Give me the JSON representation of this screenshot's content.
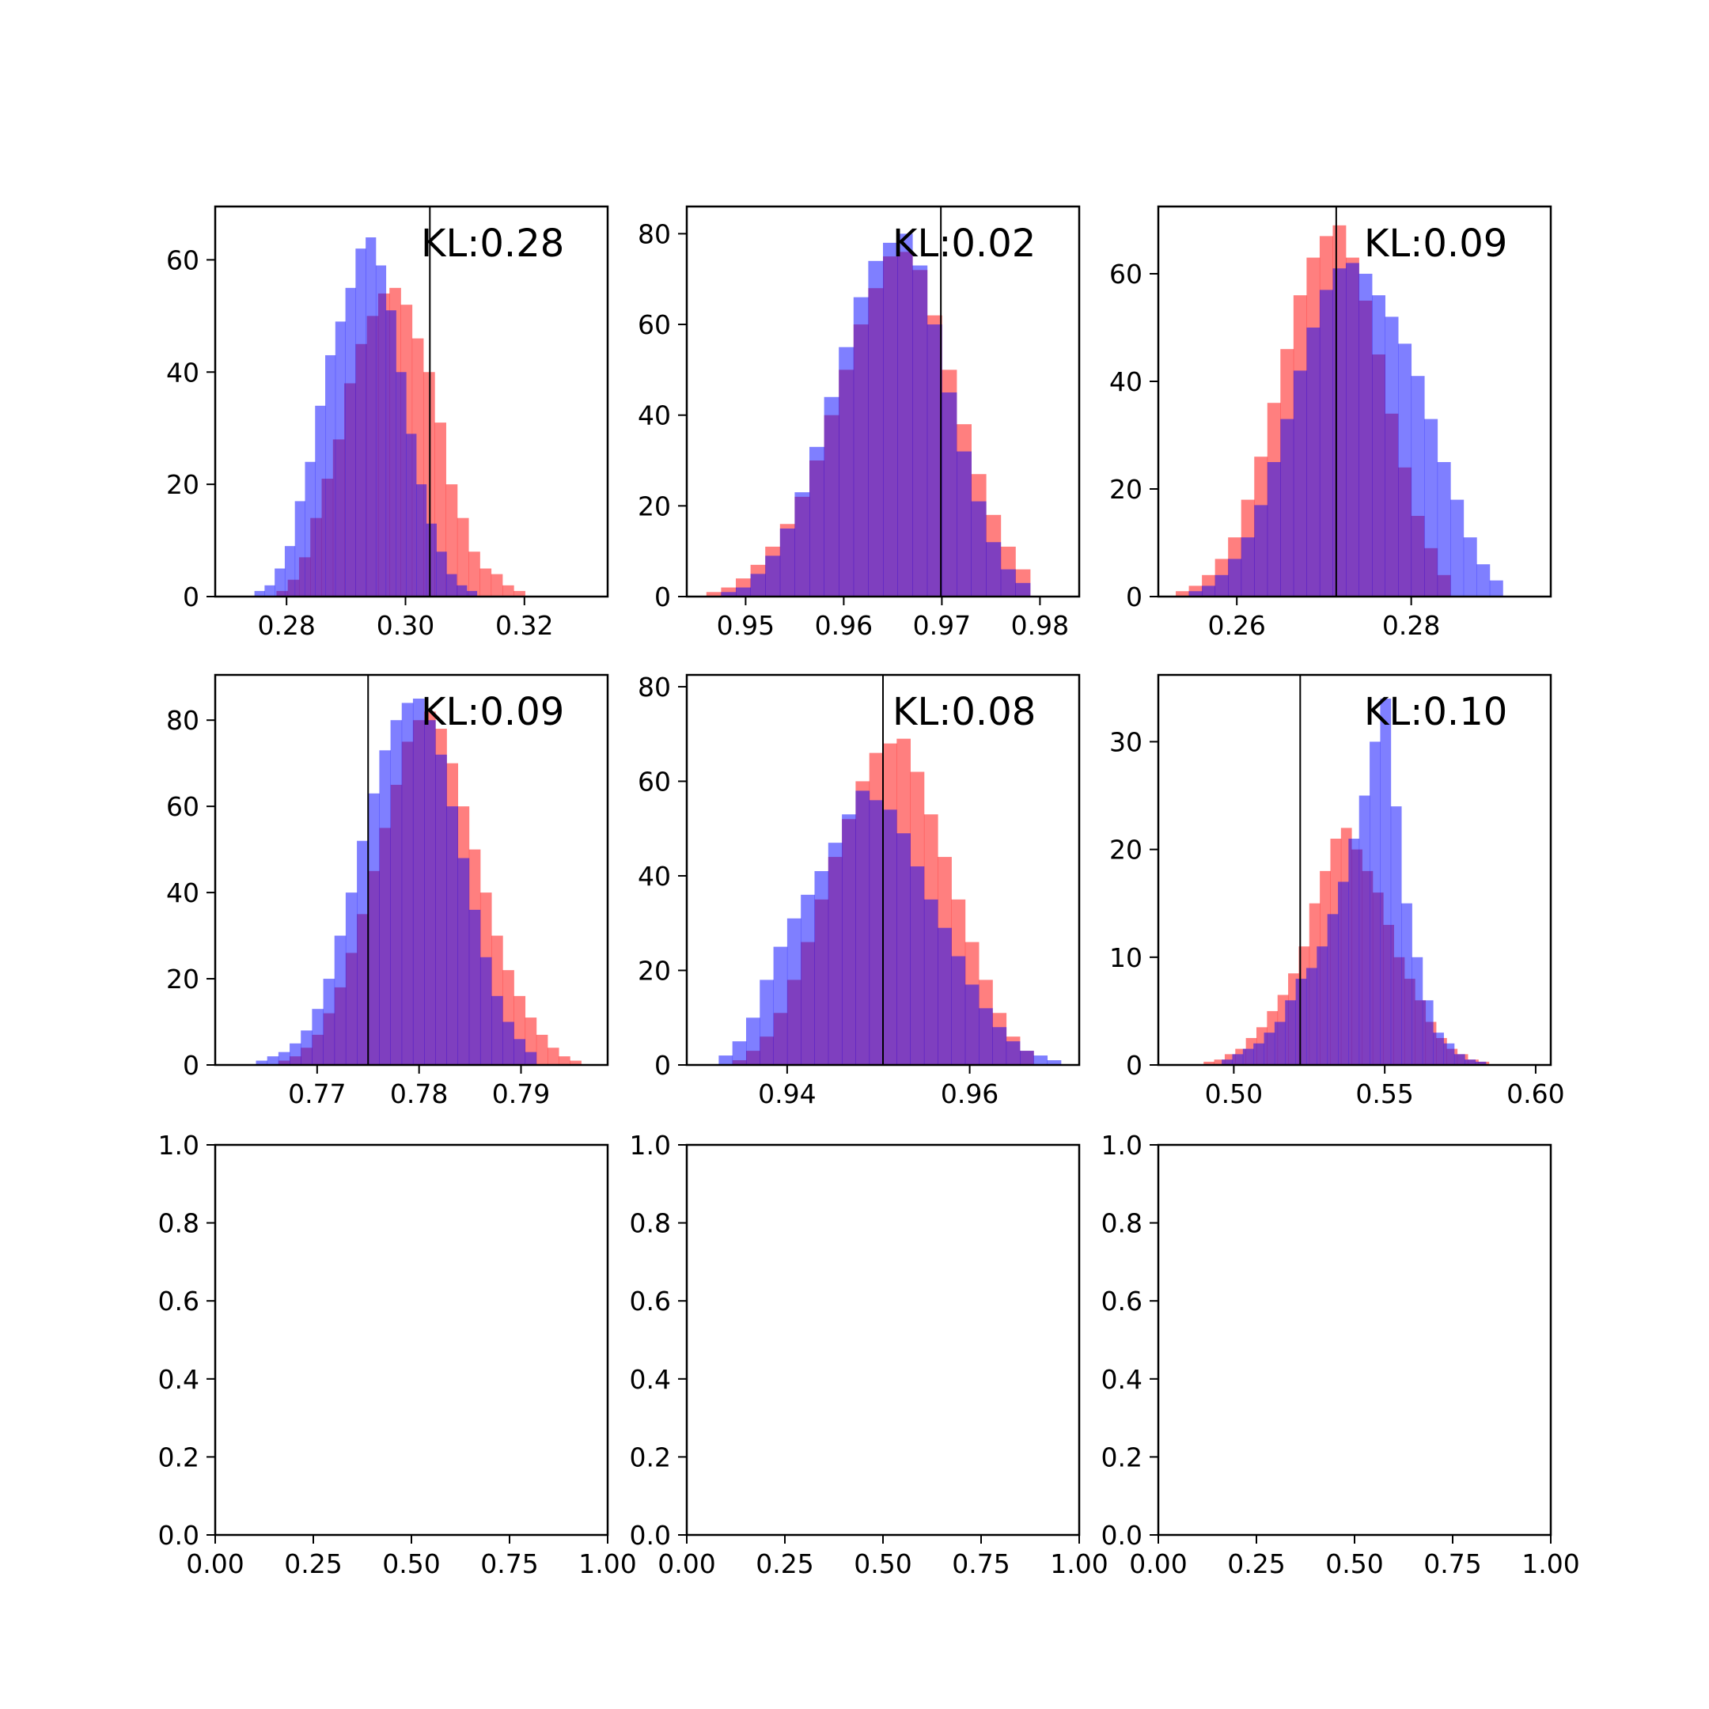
{
  "figure": {
    "colors": {
      "red": "#ff0000",
      "blue": "#0000ff",
      "overlap": "#7f3fbf",
      "line": "#000000",
      "background": "#ffffff"
    }
  },
  "chart_data": [
    {
      "type": "bar",
      "kind": "overlaid-histogram",
      "annotation": "KL:0.28",
      "xlim": [
        0.268,
        0.334
      ],
      "ylim": [
        0,
        69.5
      ],
      "xticks": [
        0.28,
        0.3,
        0.32
      ],
      "xtick_labels": [
        "0.28",
        "0.30",
        "0.32"
      ],
      "yticks": [
        0,
        20,
        40,
        60
      ],
      "ytick_labels": [
        "0",
        "20",
        "40",
        "60"
      ],
      "vline": 0.3041,
      "series": [
        {
          "color": "#ff0000",
          "edges": [
            0.2783,
            0.2802,
            0.2821,
            0.284,
            0.2859,
            0.2878,
            0.2897,
            0.2916,
            0.2935,
            0.2954,
            0.2973,
            0.2992,
            0.3011,
            0.303,
            0.3049,
            0.3068,
            0.3087,
            0.3106,
            0.3125,
            0.3144,
            0.3163,
            0.3182,
            0.3201
          ],
          "values": [
            1,
            3,
            7,
            14,
            21,
            28,
            38,
            45,
            50,
            54,
            55,
            52,
            46,
            40,
            31,
            20,
            14,
            8,
            5,
            4,
            2,
            1
          ]
        },
        {
          "color": "#0000ff",
          "edges": [
            0.2746,
            0.2763,
            0.278,
            0.2797,
            0.2814,
            0.2831,
            0.2848,
            0.2865,
            0.2882,
            0.2899,
            0.2916,
            0.2933,
            0.295,
            0.2967,
            0.2984,
            0.3001,
            0.3018,
            0.3035,
            0.3052,
            0.3069,
            0.3086,
            0.3103,
            0.312
          ],
          "values": [
            1,
            2,
            5,
            9,
            17,
            24,
            34,
            43,
            49,
            55,
            62,
            64,
            59,
            51,
            40,
            29,
            20,
            13,
            8,
            4,
            2,
            1
          ]
        }
      ]
    },
    {
      "type": "bar",
      "kind": "overlaid-histogram",
      "annotation": "KL:0.02",
      "xlim": [
        0.944,
        0.984
      ],
      "ylim": [
        0,
        86
      ],
      "xticks": [
        0.95,
        0.96,
        0.97,
        0.98
      ],
      "xtick_labels": [
        "0.95",
        "0.96",
        "0.97",
        "0.98"
      ],
      "yticks": [
        0,
        20,
        40,
        60,
        80
      ],
      "ytick_labels": [
        "0",
        "20",
        "40",
        "60",
        "80"
      ],
      "vline": 0.9699,
      "series": [
        {
          "color": "#ff0000",
          "edges": [
            0.946,
            0.9475,
            0.949,
            0.9505,
            0.952,
            0.9535,
            0.955,
            0.9565,
            0.958,
            0.9595,
            0.961,
            0.9625,
            0.964,
            0.9655,
            0.967,
            0.9685,
            0.97,
            0.9715,
            0.973,
            0.9745,
            0.976,
            0.9775,
            0.979
          ],
          "values": [
            1,
            2,
            4,
            7,
            11,
            16,
            22,
            30,
            40,
            50,
            60,
            68,
            75,
            76,
            72,
            62,
            50,
            38,
            27,
            18,
            11,
            6
          ]
        },
        {
          "color": "#0000ff",
          "edges": [
            0.9475,
            0.949,
            0.9505,
            0.952,
            0.9535,
            0.955,
            0.9565,
            0.958,
            0.9595,
            0.961,
            0.9625,
            0.964,
            0.9655,
            0.967,
            0.9685,
            0.97,
            0.9715,
            0.973,
            0.9745,
            0.976,
            0.9775,
            0.979
          ],
          "values": [
            1,
            2,
            5,
            9,
            15,
            23,
            33,
            44,
            55,
            66,
            74,
            78,
            80,
            73,
            60,
            45,
            32,
            21,
            12,
            6,
            3
          ]
        }
      ]
    },
    {
      "type": "bar",
      "kind": "overlaid-histogram",
      "annotation": "KL:0.09",
      "xlim": [
        0.251,
        0.296
      ],
      "ylim": [
        0,
        72.5
      ],
      "xticks": [
        0.26,
        0.28
      ],
      "xtick_labels": [
        "0.26",
        "0.28"
      ],
      "yticks": [
        0,
        20,
        40,
        60
      ],
      "ytick_labels": [
        "0",
        "20",
        "40",
        "60"
      ],
      "vline": 0.2714,
      "series": [
        {
          "color": "#ff0000",
          "edges": [
            0.253,
            0.2545,
            0.256,
            0.2575,
            0.259,
            0.2605,
            0.262,
            0.2635,
            0.265,
            0.2665,
            0.268,
            0.2695,
            0.271,
            0.2725,
            0.274,
            0.2755,
            0.277,
            0.2785,
            0.28,
            0.2815,
            0.283,
            0.2845
          ],
          "values": [
            1,
            2,
            4,
            7,
            11,
            18,
            26,
            36,
            46,
            56,
            63,
            67,
            69,
            63,
            55,
            45,
            34,
            24,
            15,
            9,
            4
          ]
        },
        {
          "color": "#0000ff",
          "edges": [
            0.2545,
            0.256,
            0.2575,
            0.259,
            0.2605,
            0.262,
            0.2635,
            0.265,
            0.2665,
            0.268,
            0.2695,
            0.271,
            0.2725,
            0.274,
            0.2755,
            0.277,
            0.2785,
            0.28,
            0.2815,
            0.283,
            0.2845,
            0.286,
            0.2875,
            0.289,
            0.2905
          ],
          "values": [
            1,
            2,
            4,
            7,
            11,
            17,
            25,
            33,
            42,
            50,
            57,
            61,
            62,
            60,
            56,
            52,
            47,
            41,
            33,
            25,
            18,
            11,
            6,
            3
          ]
        }
      ]
    },
    {
      "type": "bar",
      "kind": "overlaid-histogram",
      "annotation": "KL:0.09",
      "xlim": [
        0.76,
        0.7985
      ],
      "ylim": [
        0,
        90.5
      ],
      "xticks": [
        0.77,
        0.78,
        0.79
      ],
      "xtick_labels": [
        "0.77",
        "0.78",
        "0.79"
      ],
      "yticks": [
        0,
        20,
        40,
        60,
        80
      ],
      "ytick_labels": [
        "0",
        "20",
        "40",
        "60",
        "80"
      ],
      "vline": 0.775,
      "series": [
        {
          "color": "#ff0000",
          "edges": [
            0.7662,
            0.7673,
            0.7684,
            0.7695,
            0.7706,
            0.7717,
            0.7728,
            0.7739,
            0.775,
            0.7761,
            0.7772,
            0.7783,
            0.7794,
            0.7805,
            0.7816,
            0.7827,
            0.7838,
            0.7849,
            0.786,
            0.7871,
            0.7882,
            0.7893,
            0.7904,
            0.7915,
            0.7926,
            0.7937,
            0.7948,
            0.7959
          ],
          "values": [
            1,
            2,
            4,
            7,
            12,
            18,
            26,
            35,
            45,
            55,
            65,
            75,
            80,
            82,
            78,
            70,
            60,
            50,
            40,
            30,
            22,
            16,
            11,
            7,
            4,
            2,
            1
          ]
        },
        {
          "color": "#0000ff",
          "edges": [
            0.764,
            0.7651,
            0.7662,
            0.7673,
            0.7684,
            0.7695,
            0.7706,
            0.7717,
            0.7728,
            0.7739,
            0.775,
            0.7761,
            0.7772,
            0.7783,
            0.7794,
            0.7805,
            0.7816,
            0.7827,
            0.7838,
            0.7849,
            0.786,
            0.7871,
            0.7882,
            0.7893,
            0.7904,
            0.7915
          ],
          "values": [
            1,
            2,
            3,
            5,
            8,
            13,
            20,
            30,
            40,
            52,
            63,
            73,
            80,
            84,
            85,
            80,
            72,
            60,
            48,
            36,
            25,
            16,
            10,
            6,
            3
          ]
        }
      ]
    },
    {
      "type": "bar",
      "kind": "overlaid-histogram",
      "annotation": "KL:0.08",
      "xlim": [
        0.929,
        0.972
      ],
      "ylim": [
        0,
        82.5
      ],
      "xticks": [
        0.94,
        0.96
      ],
      "xtick_labels": [
        "0.94",
        "0.96"
      ],
      "yticks": [
        0,
        20,
        40,
        60,
        80
      ],
      "ytick_labels": [
        "0",
        "20",
        "40",
        "60",
        "80"
      ],
      "vline": 0.9505,
      "series": [
        {
          "color": "#ff0000",
          "edges": [
            0.934,
            0.9355,
            0.937,
            0.9385,
            0.94,
            0.9415,
            0.943,
            0.9445,
            0.946,
            0.9475,
            0.949,
            0.9505,
            0.952,
            0.9535,
            0.955,
            0.9565,
            0.958,
            0.9595,
            0.961,
            0.9625,
            0.964,
            0.9655,
            0.967
          ],
          "values": [
            1,
            3,
            6,
            11,
            18,
            26,
            35,
            44,
            52,
            60,
            66,
            68,
            69,
            62,
            53,
            44,
            35,
            26,
            18,
            11,
            6,
            3
          ]
        },
        {
          "color": "#0000ff",
          "edges": [
            0.9325,
            0.934,
            0.9355,
            0.937,
            0.9385,
            0.94,
            0.9415,
            0.943,
            0.9445,
            0.946,
            0.9475,
            0.949,
            0.9505,
            0.952,
            0.9535,
            0.955,
            0.9565,
            0.958,
            0.9595,
            0.961,
            0.9625,
            0.964,
            0.9655,
            0.967,
            0.9685,
            0.97
          ],
          "values": [
            2,
            5,
            10,
            18,
            25,
            31,
            36,
            41,
            47,
            53,
            58,
            56,
            54,
            49,
            42,
            35,
            29,
            23,
            17,
            12,
            8,
            5,
            3,
            2,
            1
          ]
        }
      ]
    },
    {
      "type": "bar",
      "kind": "overlaid-histogram",
      "annotation": "KL:0.10",
      "xlim": [
        0.475,
        0.605
      ],
      "ylim": [
        0,
        36.2
      ],
      "xticks": [
        0.5,
        0.55,
        0.6
      ],
      "xtick_labels": [
        "0.50",
        "0.55",
        "0.60"
      ],
      "yticks": [
        0,
        10,
        20,
        30
      ],
      "ytick_labels": [
        "0",
        "10",
        "20",
        "30"
      ],
      "vline": 0.522,
      "series": [
        {
          "color": "#ff0000",
          "edges": [
            0.49,
            0.4935,
            0.497,
            0.5005,
            0.504,
            0.5075,
            0.511,
            0.5145,
            0.518,
            0.5215,
            0.525,
            0.5285,
            0.532,
            0.5355,
            0.539,
            0.5425,
            0.546,
            0.5495,
            0.553,
            0.5565,
            0.56,
            0.5635,
            0.567,
            0.5705,
            0.574,
            0.5775,
            0.581,
            0.5845
          ],
          "values": [
            0.3,
            0.5,
            1,
            1.5,
            2.5,
            3.5,
            5,
            6.5,
            8.5,
            11,
            15,
            18,
            21,
            22,
            20,
            18,
            16,
            13,
            10,
            8,
            6,
            4,
            2.5,
            1.5,
            1,
            0.5,
            0.3
          ]
        },
        {
          "color": "#0000ff",
          "edges": [
            0.496,
            0.4995,
            0.503,
            0.5065,
            0.51,
            0.5135,
            0.517,
            0.5205,
            0.524,
            0.5275,
            0.531,
            0.5345,
            0.538,
            0.5415,
            0.545,
            0.5485,
            0.552,
            0.5555,
            0.559,
            0.5625,
            0.566,
            0.5695,
            0.573,
            0.5765,
            0.58,
            0.5835
          ],
          "values": [
            0.5,
            1,
            1.5,
            2,
            3,
            4,
            6,
            8,
            9,
            11,
            14,
            17,
            21,
            25,
            30,
            34,
            24,
            15,
            10,
            6,
            3,
            2,
            1,
            0.5,
            0.3
          ]
        }
      ]
    },
    {
      "type": "bar",
      "kind": "empty-axes",
      "xlim": [
        0,
        1
      ],
      "ylim": [
        0,
        1
      ],
      "xticks": [
        0,
        0.25,
        0.5,
        0.75,
        1
      ],
      "xtick_labels": [
        "0.00",
        "0.25",
        "0.50",
        "0.75",
        "1.00"
      ],
      "yticks": [
        0,
        0.2,
        0.4,
        0.6,
        0.8,
        1
      ],
      "ytick_labels": [
        "0.0",
        "0.2",
        "0.4",
        "0.6",
        "0.8",
        "1.0"
      ],
      "series": []
    },
    {
      "type": "bar",
      "kind": "empty-axes",
      "xlim": [
        0,
        1
      ],
      "ylim": [
        0,
        1
      ],
      "xticks": [
        0,
        0.25,
        0.5,
        0.75,
        1
      ],
      "xtick_labels": [
        "0.00",
        "0.25",
        "0.50",
        "0.75",
        "1.00"
      ],
      "yticks": [
        0,
        0.2,
        0.4,
        0.6,
        0.8,
        1
      ],
      "ytick_labels": [
        "0.0",
        "0.2",
        "0.4",
        "0.6",
        "0.8",
        "1.0"
      ],
      "series": []
    },
    {
      "type": "bar",
      "kind": "empty-axes",
      "xlim": [
        0,
        1
      ],
      "ylim": [
        0,
        1
      ],
      "xticks": [
        0,
        0.25,
        0.5,
        0.75,
        1
      ],
      "xtick_labels": [
        "0.00",
        "0.25",
        "0.50",
        "0.75",
        "1.00"
      ],
      "yticks": [
        0,
        0.2,
        0.4,
        0.6,
        0.8,
        1
      ],
      "ytick_labels": [
        "0.0",
        "0.2",
        "0.4",
        "0.6",
        "0.8",
        "1.0"
      ],
      "series": []
    }
  ]
}
